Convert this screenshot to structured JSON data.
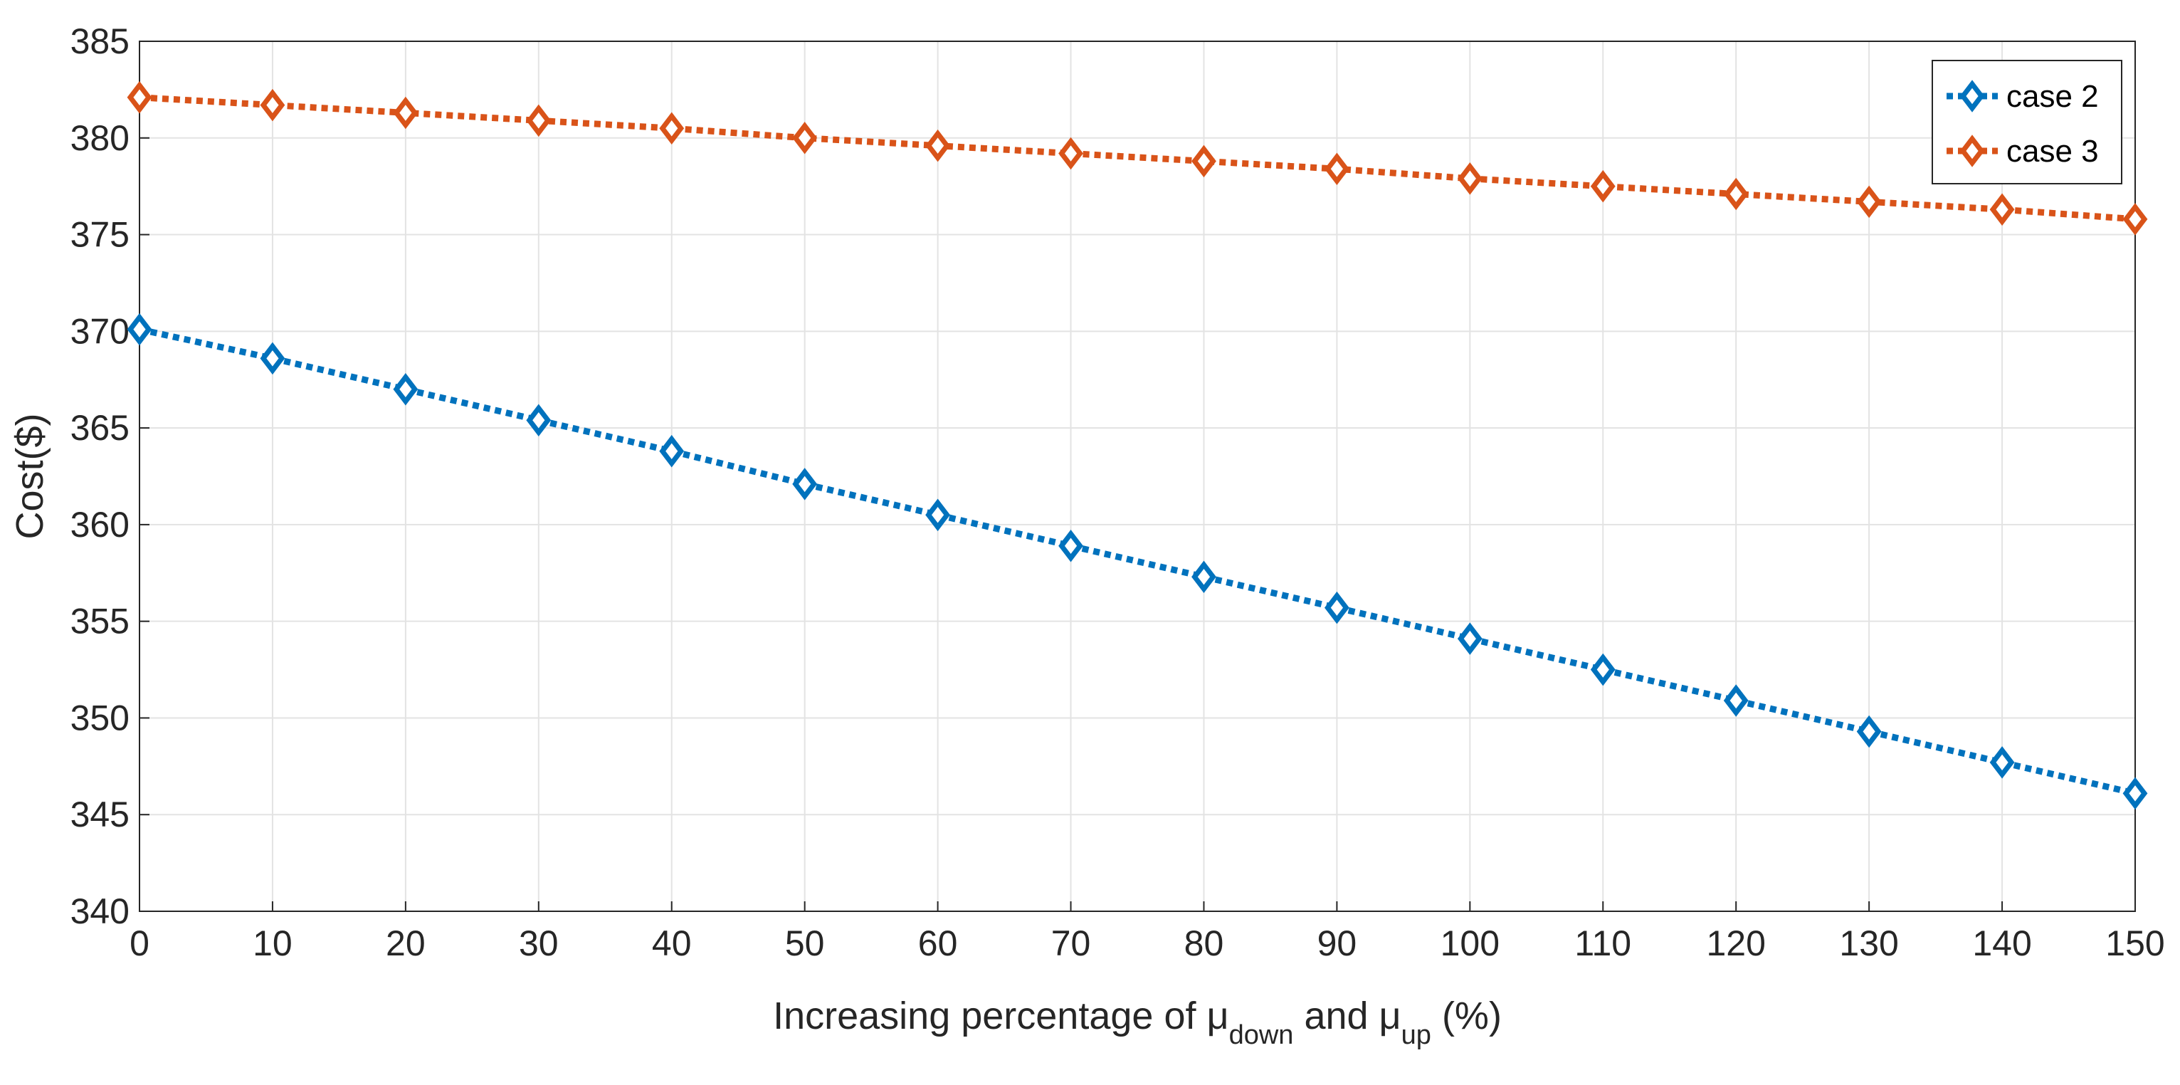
{
  "chart_data": {
    "type": "line",
    "title": "",
    "xlabel": {
      "prefix": "Increasing percentage of μ",
      "sub1": "down",
      "middle": " and μ",
      "sub2": "up",
      "suffix": " (%)"
    },
    "ylabel": "Cost($)",
    "xlim": [
      0,
      150
    ],
    "ylim": [
      340,
      385
    ],
    "xticks": [
      0,
      10,
      20,
      30,
      40,
      50,
      60,
      70,
      80,
      90,
      100,
      110,
      120,
      130,
      140,
      150
    ],
    "yticks": [
      340,
      345,
      350,
      355,
      360,
      365,
      370,
      375,
      380,
      385
    ],
    "grid": true,
    "legend_position": "top-right",
    "x": [
      0,
      10,
      20,
      30,
      40,
      50,
      60,
      70,
      80,
      90,
      100,
      110,
      120,
      130,
      140,
      150
    ],
    "series": [
      {
        "name": "case 2",
        "color": "#0072BD",
        "line_style": "dotted",
        "marker": "diamond",
        "values": [
          370.1,
          368.6,
          367.0,
          365.4,
          363.8,
          362.1,
          360.5,
          358.9,
          357.3,
          355.7,
          354.1,
          352.5,
          350.9,
          349.3,
          347.7,
          346.1
        ]
      },
      {
        "name": "case 3",
        "color": "#D95319",
        "line_style": "dotted",
        "marker": "diamond",
        "values": [
          382.1,
          381.7,
          381.3,
          380.9,
          380.5,
          380.0,
          379.6,
          379.2,
          378.8,
          378.4,
          377.9,
          377.5,
          377.1,
          376.7,
          376.3,
          375.8
        ]
      }
    ]
  }
}
